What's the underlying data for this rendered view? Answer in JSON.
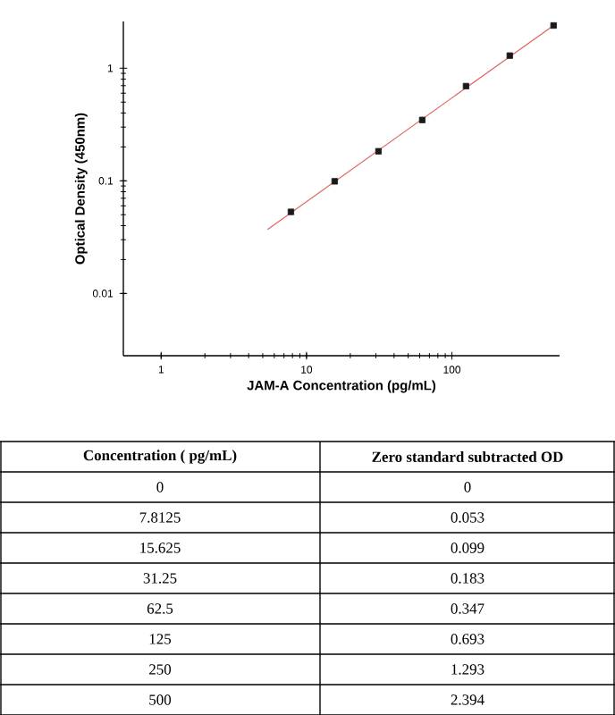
{
  "chart_data": {
    "type": "scatter",
    "xlabel": "JAM-A Concentration (pg/mL)",
    "ylabel": "Optical Density (450nm)",
    "log": "xy",
    "xlim": [
      0.55,
      550
    ],
    "ylim": [
      0.0028,
      2.6
    ],
    "xticks": [
      1,
      10,
      100
    ],
    "yticks": [
      0.01,
      0.1,
      1
    ],
    "marker": "square",
    "series": [
      {
        "color": "#1a1a1a",
        "x": [
          7.8125,
          15.625,
          31.25,
          62.5,
          125,
          250,
          500
        ],
        "values": [
          0.053,
          0.099,
          0.183,
          0.347,
          0.693,
          1.293,
          2.394
        ]
      },
      {
        "type": "line",
        "marker": "none",
        "color": "#e06060",
        "x": [
          5.4,
          500
        ],
        "values": [
          0.037,
          2.4
        ]
      }
    ],
    "annotations": [
      "Concentration ( pg/mL)",
      "Zero standard subtracted OD",
      "0",
      "0",
      "7.8125",
      "0.053",
      "15.625",
      "0.099",
      "31.25",
      "0.183",
      "62.5",
      "0.347",
      "125",
      "0.693",
      "250",
      "1.293",
      "500",
      "2.394"
    ]
  }
}
